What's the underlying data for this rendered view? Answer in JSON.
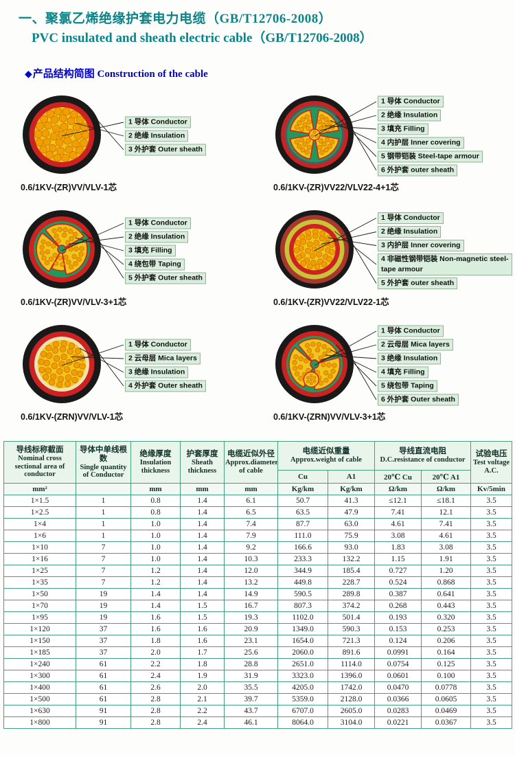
{
  "page": {
    "title_zh": "一、聚氯乙烯绝缘护套电力电缆（GB/T12706-2008）",
    "title_en": "PVC insulated and sheath electric cable（GB/T12706-2008）",
    "section_bullet": "◆",
    "section_title": "产品结构简图 Construction of the cable"
  },
  "colors": {
    "title_teal": "#0b8488",
    "section_blue": "#0202c8",
    "table_border": "#43a17f",
    "header_bg": "#e9f4ea",
    "label_bg": "#daeedd",
    "sheath_black": "#191919",
    "insulation_red": "#cc2222",
    "conductor_yellow": "#f2c51d",
    "strand_orange": "#f29d00",
    "filler_green": "#22995c"
  },
  "diagrams": [
    {
      "caption": "0.6/1KV-(ZR)VV/VLV-1芯",
      "type": "single",
      "labels": [
        "1 导体 Conductor",
        "2 绝缘 Insulation",
        "3 外护套 Outer sheath"
      ]
    },
    {
      "caption": "0.6/1KV-(ZR)VV22/VLV22-4+1芯",
      "type": "four_plus_one_armoured",
      "labels": [
        "1 导体 Conductor",
        "2 绝缘 Insulation",
        "3 填充 Filling",
        "4 内护层 Inner covering",
        "5 钢带铠装 Steel-tape armour",
        "6 外护套 outer sheath"
      ]
    },
    {
      "caption": "0.6/1KV-(ZR)VV/VLV-3+1芯",
      "type": "three_plus_one",
      "labels": [
        "1 导体 Conductor",
        "2 绝缘 Insulation",
        "3 填充 Filling",
        "4 绕包带 Taping",
        "5 外护套 Outer sheath"
      ]
    },
    {
      "caption": "0.6/1KV-(ZR)VV22/VLV22-1芯",
      "type": "single_armoured",
      "labels": [
        "1 导体 Conductor",
        "2 绝缘 Insulation",
        "3 内护层 Inner covering",
        "4 非磁性钢带铠装 Non-magnetic steel-tape armour",
        "5 外护套 outer sheath"
      ]
    },
    {
      "caption": "0.6/1KV-(ZRN)VV/VLV-1芯",
      "type": "single_mica",
      "labels": [
        "1 导体 Conductor",
        "2 云母层 Mica layers",
        "3 绝缘 Insulation",
        "4 外护套 Outer sheath"
      ]
    },
    {
      "caption": "0.6/1KV-(ZRN)VV/VLV-3+1芯",
      "type": "three_plus_one_mica",
      "labels": [
        "1 导体 Conductor",
        "2 云母层 Mica layers",
        "3 绝缘 Insulation",
        "4 填充 Filling",
        "5 绕包带 Taping",
        "6 外护套 Outer sheath"
      ]
    }
  ],
  "table": {
    "col_nominal": {
      "zh": "导线标称截面",
      "en": "Nominal cross sectional area of conductor"
    },
    "col_strands": {
      "zh": "导体中单线根数",
      "en": "Single quantity of Conductor"
    },
    "col_insulation": {
      "zh": "绝缘厚度",
      "en": "Insulation thickness"
    },
    "col_sheath": {
      "zh": "护套厚度",
      "en": "Sheath thickness"
    },
    "col_diameter": {
      "zh": "电缆近似外径",
      "en": "Approx.diameter of cable"
    },
    "grp_weight": {
      "zh": "电缆近似重量",
      "en": "Approx.weight of cable",
      "sub_cu": "Cu",
      "sub_al": "A1"
    },
    "grp_resistance": {
      "zh": "导线直流电阻",
      "en": "D.C.resistance of conductor",
      "sub_cu": "20℃ Cu",
      "sub_al": "20℃ A1"
    },
    "col_voltage": {
      "zh": "试验电压",
      "en": "Test voltage A.C."
    },
    "units": [
      "mm²",
      "",
      "mm",
      "mm",
      "mm",
      "Kg/km",
      "Kg/km",
      "Ω/km",
      "Ω/km",
      "Kv/5min"
    ],
    "rows": [
      [
        "1×1.5",
        "1",
        "0.8",
        "1.4",
        "6.1",
        "50.7",
        "41.3",
        "≤12.1",
        "≤18.1",
        "3.5"
      ],
      [
        "1×2.5",
        "1",
        "0.8",
        "1.4",
        "6.5",
        "63.5",
        "47.9",
        "7.41",
        "12.1",
        "3.5"
      ],
      [
        "1×4",
        "1",
        "1.0",
        "1.4",
        "7.4",
        "87.7",
        "63.0",
        "4.61",
        "7.41",
        "3.5"
      ],
      [
        "1×6",
        "1",
        "1.0",
        "1.4",
        "7.9",
        "111.0",
        "75.9",
        "3.08",
        "4.61",
        "3.5"
      ],
      [
        "1×10",
        "7",
        "1.0",
        "1.4",
        "9.2",
        "166.6",
        "93.0",
        "1.83",
        "3.08",
        "3.5"
      ],
      [
        "1×16",
        "7",
        "1.0",
        "1.4",
        "10.3",
        "233.3",
        "132.2",
        "1.15",
        "1.91",
        "3.5"
      ],
      [
        "1×25",
        "7",
        "1.2",
        "1.4",
        "12.0",
        "344.9",
        "185.4",
        "0.727",
        "1.20",
        "3.5"
      ],
      [
        "1×35",
        "7",
        "1.2",
        "1.4",
        "13.2",
        "449.8",
        "228.7",
        "0.524",
        "0.868",
        "3.5"
      ],
      [
        "1×50",
        "19",
        "1.4",
        "1.4",
        "14.9",
        "590.5",
        "289.8",
        "0.387",
        "0.641",
        "3.5"
      ],
      [
        "1×70",
        "19",
        "1.4",
        "1.5",
        "16.7",
        "807.3",
        "374.2",
        "0.268",
        "0.443",
        "3.5"
      ],
      [
        "1×95",
        "19",
        "1.6",
        "1.5",
        "19.3",
        "1102.0",
        "501.4",
        "0.193",
        "0.320",
        "3.5"
      ],
      [
        "1×120",
        "37",
        "1.6",
        "1.6",
        "20.9",
        "1349.0",
        "590.3",
        "0.153",
        "0.253",
        "3.5"
      ],
      [
        "1×150",
        "37",
        "1.8",
        "1.6",
        "23.1",
        "1654.0",
        "721.3",
        "0.124",
        "0.206",
        "3.5"
      ],
      [
        "1×185",
        "37",
        "2.0",
        "1.7",
        "25.6",
        "2060.0",
        "891.6",
        "0.0991",
        "0.164",
        "3.5"
      ],
      [
        "1×240",
        "61",
        "2.2",
        "1.8",
        "28.8",
        "2651.0",
        "1114.0",
        "0.0754",
        "0.125",
        "3.5"
      ],
      [
        "1×300",
        "61",
        "2.4",
        "1.9",
        "31.9",
        "3323.0",
        "1396.0",
        "0.0601",
        "0.100",
        "3.5"
      ],
      [
        "1×400",
        "61",
        "2.6",
        "2.0",
        "35.5",
        "4205.0",
        "1742.0",
        "0.0470",
        "0.0778",
        "3.5"
      ],
      [
        "1×500",
        "61",
        "2.8",
        "2.1",
        "39.7",
        "5359.0",
        "2128.0",
        "0.0366",
        "0.0605",
        "3.5"
      ],
      [
        "1×630",
        "91",
        "2.8",
        "2.2",
        "43.7",
        "6707.0",
        "2605.0",
        "0.0283",
        "0.0469",
        "3.5"
      ],
      [
        "1×800",
        "91",
        "2.8",
        "2.4",
        "46.1",
        "8064.0",
        "3104.0",
        "0.0221",
        "0.0367",
        "3.5"
      ]
    ]
  }
}
